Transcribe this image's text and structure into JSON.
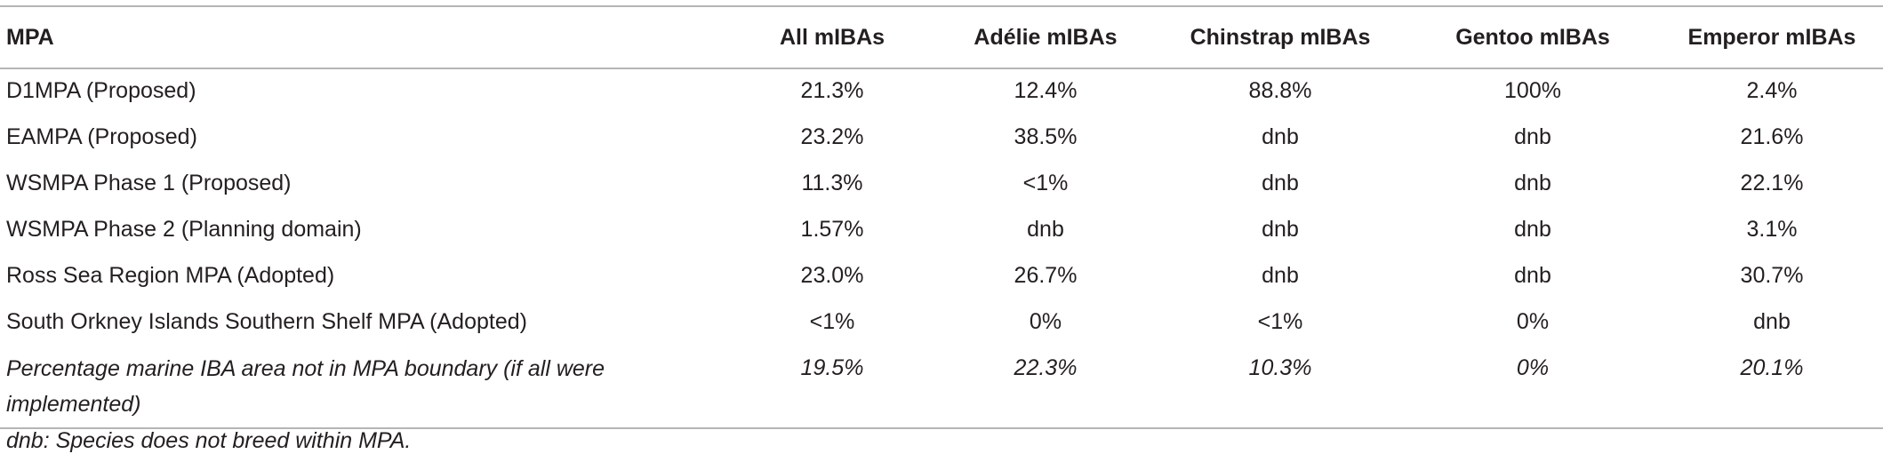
{
  "table": {
    "header": [
      "MPA",
      "All mIBAs",
      "Adélie mIBAs",
      "Chinstrap mIBAs",
      "Gentoo mIBAs",
      "Emperor mIBAs"
    ],
    "rows": [
      [
        "D1MPA (Proposed)",
        "21.3%",
        "12.4%",
        "88.8%",
        "100%",
        "2.4%"
      ],
      [
        "EAMPA (Proposed)",
        "23.2%",
        "38.5%",
        "dnb",
        "dnb",
        "21.6%"
      ],
      [
        "WSMPA Phase 1 (Proposed)",
        "11.3%",
        "<1%",
        "dnb",
        "dnb",
        "22.1%"
      ],
      [
        "WSMPA Phase 2 (Planning domain)",
        "1.57%",
        "dnb",
        "dnb",
        "dnb",
        "3.1%"
      ],
      [
        "Ross Sea Region MPA (Adopted)",
        "23.0%",
        "26.7%",
        "dnb",
        "dnb",
        "30.7%"
      ],
      [
        "South Orkney Islands Southern Shelf MPA (Adopted)",
        "<1%",
        "0%",
        "<1%",
        "0%",
        "dnb"
      ],
      [
        "Percentage marine IBA area not in MPA boundary (if all were implemented)",
        "19.5%",
        "22.3%",
        "10.3%",
        "0%",
        "20.1%"
      ]
    ]
  },
  "footnote": "dnb: Species does not breed within MPA."
}
